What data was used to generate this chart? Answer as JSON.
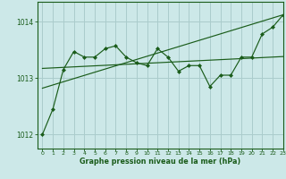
{
  "bg_color": "#cce8e8",
  "grid_color": "#aacccc",
  "line_color": "#1a5c1a",
  "marker_color": "#1a5c1a",
  "xlabel": "Graphe pression niveau de la mer (hPa)",
  "xlim": [
    -0.5,
    23
  ],
  "ylim": [
    1011.75,
    1014.35
  ],
  "yticks": [
    1012,
    1013,
    1014
  ],
  "xticks": [
    0,
    1,
    2,
    3,
    4,
    5,
    6,
    7,
    8,
    9,
    10,
    11,
    12,
    13,
    14,
    15,
    16,
    17,
    18,
    19,
    20,
    21,
    22,
    23
  ],
  "main_data": [
    1012.0,
    1012.45,
    1013.15,
    1013.47,
    1013.37,
    1013.37,
    1013.52,
    1013.57,
    1013.37,
    1013.27,
    1013.22,
    1013.52,
    1013.37,
    1013.12,
    1013.22,
    1013.22,
    1012.85,
    1013.05,
    1013.05,
    1013.37,
    1013.37,
    1013.78,
    1013.9,
    1014.12
  ],
  "smooth_data_x": [
    0,
    23
  ],
  "smooth_data_y": [
    1013.17,
    1013.38
  ],
  "trend_data_x": [
    0,
    23
  ],
  "trend_data_y": [
    1012.82,
    1014.12
  ]
}
